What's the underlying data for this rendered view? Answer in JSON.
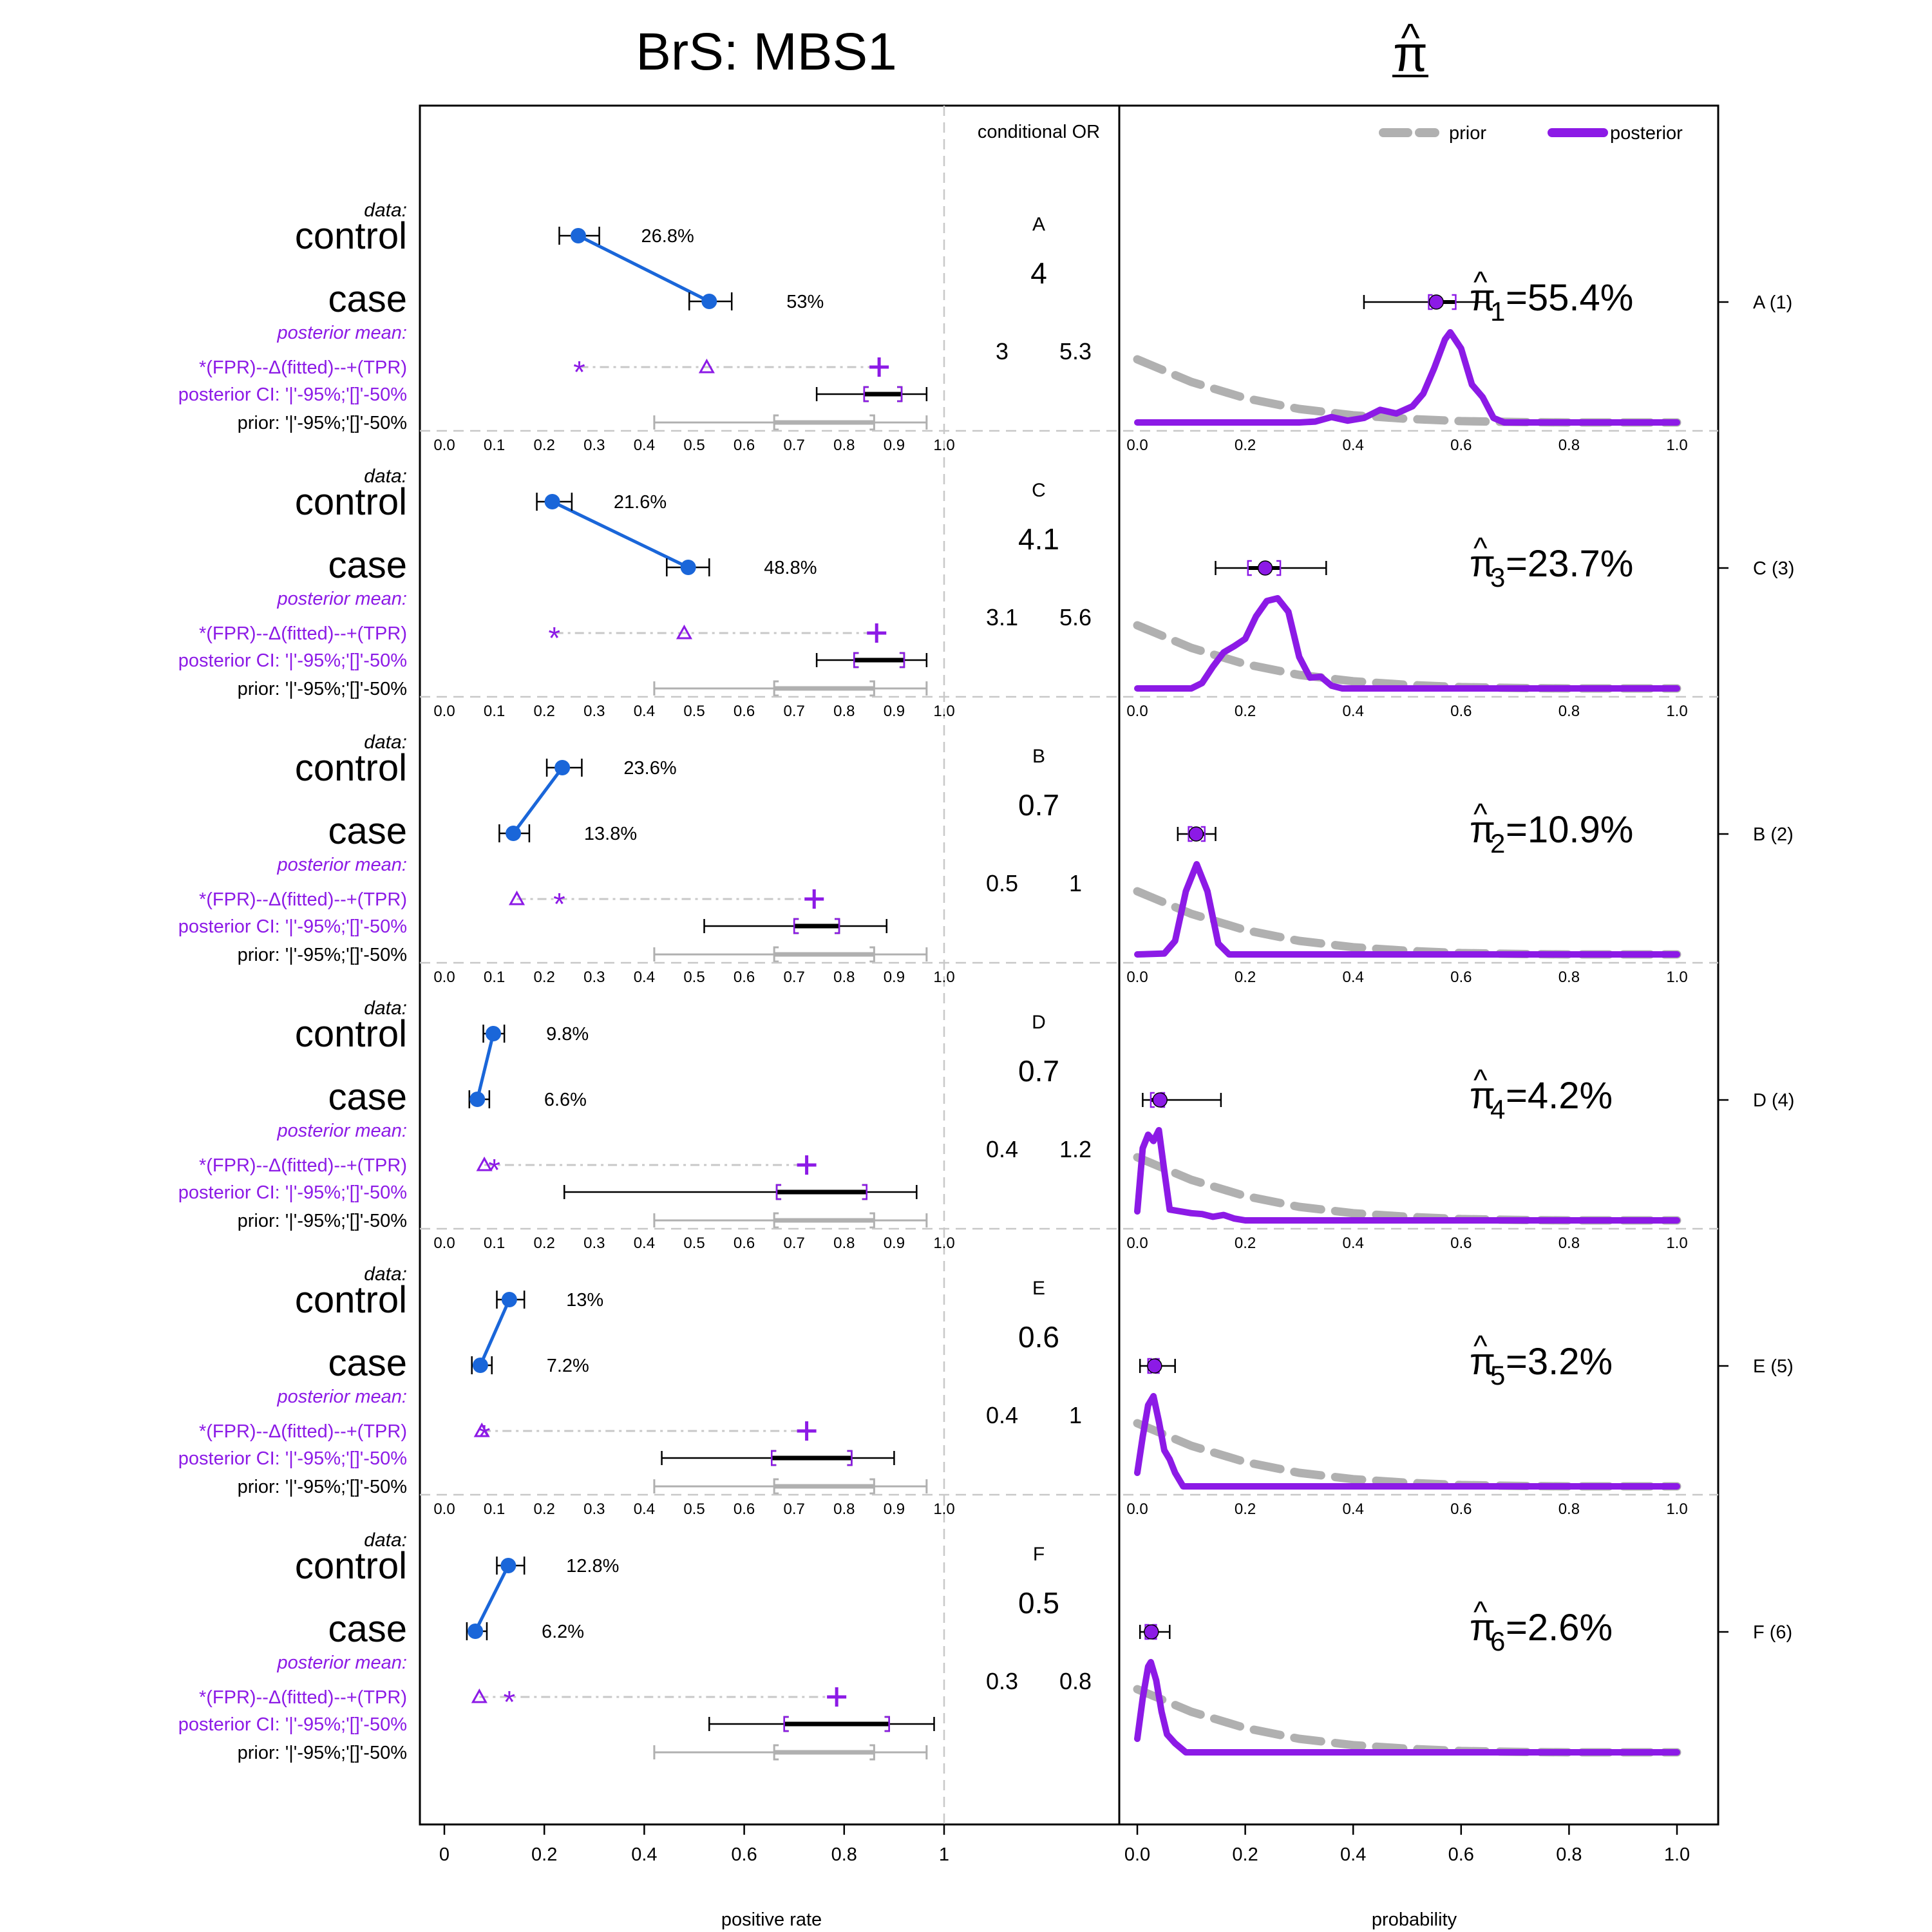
{
  "left_title": "BrS: MBS1",
  "right_title": "π",
  "hat": "^",
  "conditional_or_header": "conditional OR",
  "left_xlabel": "positive rate",
  "right_xlabel": "probability",
  "left_ticks": [
    "0",
    "0.2",
    "0.4",
    "0.6",
    "0.8",
    "1"
  ],
  "inner_ticks": [
    "0.0",
    "0.1",
    "0.2",
    "0.3",
    "0.4",
    "0.5",
    "0.6",
    "0.7",
    "0.8",
    "0.9",
    "1.0"
  ],
  "right_ticks": [
    "0.0",
    "0.2",
    "0.4",
    "0.6",
    "0.8",
    "1.0"
  ],
  "legend": {
    "prior": "prior",
    "posterior": "posterior"
  },
  "labels": {
    "data": "data:",
    "control": "control",
    "case": "case",
    "posterior_mean": "posterior mean:",
    "fpr_line": "*(FPR)--Δ(fitted)--+(TPR)",
    "posterior_ci": "posterior CI: '|'-95%;'[]'-50%",
    "prior_ci": "prior: '|'-95%;'[]'-50%"
  },
  "colors": {
    "data_blue": "#1a66d9",
    "purple": "#8c1ae6",
    "prior_gray": "#b0b0b0",
    "dash_gray": "#c8c8c8"
  },
  "chart_data": {
    "type": "forest-and-density",
    "prior_ci": {
      "lo95": 0.42,
      "lo50": 0.66,
      "hi50": 0.86,
      "hi95": 0.965
    },
    "panels": [
      {
        "name": "A",
        "index_label": "A (1)",
        "pi_sub": "1",
        "pi_text": "=55.4%",
        "pi_value": 0.554,
        "pi_ci": {
          "lo95": 0.42,
          "lo50": 0.54,
          "hi50": 0.59,
          "hi95": 0.65
        },
        "control_rate": 0.268,
        "control_ci": [
          0.23,
          0.31
        ],
        "control_label": "26.8%",
        "case_rate": 0.53,
        "case_ci": [
          0.49,
          0.575
        ],
        "case_label": "53%",
        "or": "4",
        "or_lo": "3",
        "or_hi": "5.3",
        "fpr": 0.27,
        "fitted": 0.525,
        "tpr": 0.87,
        "post_ci": {
          "lo95": 0.745,
          "lo50": 0.84,
          "hi50": 0.915,
          "hi95": 0.965
        },
        "prior_curve": [
          [
            0,
            0.7
          ],
          [
            0.1,
            0.45
          ],
          [
            0.2,
            0.27
          ],
          [
            0.3,
            0.15
          ],
          [
            0.4,
            0.08
          ],
          [
            0.5,
            0.04
          ],
          [
            0.6,
            0.015
          ],
          [
            0.7,
            0.005
          ],
          [
            0.8,
            0
          ],
          [
            1,
            0
          ]
        ],
        "posterior_curve": [
          [
            0,
            0
          ],
          [
            0.3,
            0
          ],
          [
            0.33,
            0.01
          ],
          [
            0.36,
            0.06
          ],
          [
            0.39,
            0.02
          ],
          [
            0.42,
            0.05
          ],
          [
            0.45,
            0.14
          ],
          [
            0.48,
            0.1
          ],
          [
            0.51,
            0.18
          ],
          [
            0.53,
            0.32
          ],
          [
            0.55,
            0.6
          ],
          [
            0.57,
            0.92
          ],
          [
            0.58,
            1.0
          ],
          [
            0.6,
            0.82
          ],
          [
            0.62,
            0.42
          ],
          [
            0.64,
            0.28
          ],
          [
            0.66,
            0.05
          ],
          [
            0.68,
            0
          ],
          [
            1,
            0
          ]
        ]
      },
      {
        "name": "C",
        "index_label": "C (3)",
        "pi_sub": "3",
        "pi_text": "=23.7%",
        "pi_value": 0.237,
        "pi_ci": {
          "lo95": 0.145,
          "lo50": 0.205,
          "hi50": 0.265,
          "hi95": 0.35
        },
        "control_rate": 0.216,
        "control_ci": [
          0.185,
          0.255
        ],
        "control_label": "21.6%",
        "case_rate": 0.488,
        "case_ci": [
          0.445,
          0.53
        ],
        "case_label": "48.8%",
        "or": "4.1",
        "or_lo": "3.1",
        "or_hi": "5.6",
        "fpr": 0.22,
        "fitted": 0.48,
        "tpr": 0.865,
        "post_ci": {
          "lo95": 0.745,
          "lo50": 0.82,
          "hi50": 0.92,
          "hi95": 0.965
        },
        "prior_curve": [
          [
            0,
            0.7
          ],
          [
            0.1,
            0.45
          ],
          [
            0.2,
            0.27
          ],
          [
            0.3,
            0.15
          ],
          [
            0.4,
            0.08
          ],
          [
            0.5,
            0.04
          ],
          [
            0.6,
            0.015
          ],
          [
            0.7,
            0.005
          ],
          [
            0.8,
            0
          ],
          [
            1,
            0
          ]
        ],
        "posterior_curve": [
          [
            0,
            0
          ],
          [
            0.1,
            0
          ],
          [
            0.12,
            0.06
          ],
          [
            0.14,
            0.24
          ],
          [
            0.16,
            0.4
          ],
          [
            0.18,
            0.47
          ],
          [
            0.2,
            0.55
          ],
          [
            0.22,
            0.8
          ],
          [
            0.24,
            0.97
          ],
          [
            0.26,
            1.0
          ],
          [
            0.28,
            0.85
          ],
          [
            0.3,
            0.35
          ],
          [
            0.32,
            0.12
          ],
          [
            0.34,
            0.13
          ],
          [
            0.36,
            0.03
          ],
          [
            0.38,
            0
          ],
          [
            1,
            0
          ]
        ]
      },
      {
        "name": "B",
        "index_label": "B (2)",
        "pi_sub": "2",
        "pi_text": "=10.9%",
        "pi_value": 0.109,
        "pi_ci": {
          "lo95": 0.075,
          "lo50": 0.095,
          "hi50": 0.125,
          "hi95": 0.145
        },
        "control_rate": 0.236,
        "control_ci": [
          0.205,
          0.275
        ],
        "control_label": "23.6%",
        "case_rate": 0.138,
        "case_ci": [
          0.11,
          0.17
        ],
        "case_label": "13.8%",
        "or": "0.7",
        "or_lo": "0.5",
        "or_hi": "1",
        "fpr": 0.23,
        "fitted": 0.145,
        "tpr": 0.74,
        "post_ci": {
          "lo95": 0.52,
          "lo50": 0.7,
          "hi50": 0.79,
          "hi95": 0.885
        },
        "prior_curve": [
          [
            0,
            0.7
          ],
          [
            0.1,
            0.45
          ],
          [
            0.2,
            0.27
          ],
          [
            0.3,
            0.15
          ],
          [
            0.4,
            0.08
          ],
          [
            0.5,
            0.04
          ],
          [
            0.6,
            0.015
          ],
          [
            0.7,
            0.005
          ],
          [
            0.8,
            0
          ],
          [
            1,
            0
          ]
        ],
        "posterior_curve": [
          [
            0,
            0
          ],
          [
            0.05,
            0.01
          ],
          [
            0.07,
            0.15
          ],
          [
            0.09,
            0.7
          ],
          [
            0.11,
            1.0
          ],
          [
            0.13,
            0.7
          ],
          [
            0.15,
            0.12
          ],
          [
            0.17,
            0
          ],
          [
            1,
            0
          ]
        ]
      },
      {
        "name": "D",
        "index_label": "D (4)",
        "pi_sub": "4",
        "pi_text": "=4.2%",
        "pi_value": 0.042,
        "pi_ci": {
          "lo95": 0.01,
          "lo50": 0.025,
          "hi50": 0.05,
          "hi95": 0.155
        },
        "control_rate": 0.098,
        "control_ci": [
          0.078,
          0.12
        ],
        "control_label": "9.8%",
        "case_rate": 0.066,
        "case_ci": [
          0.05,
          0.09
        ],
        "case_label": "6.6%",
        "or": "0.7",
        "or_lo": "0.4",
        "or_hi": "1.2",
        "fpr": 0.1,
        "fitted": 0.08,
        "tpr": 0.725,
        "post_ci": {
          "lo95": 0.24,
          "lo50": 0.665,
          "hi50": 0.845,
          "hi95": 0.945
        },
        "prior_curve": [
          [
            0,
            0.7
          ],
          [
            0.1,
            0.45
          ],
          [
            0.2,
            0.27
          ],
          [
            0.3,
            0.15
          ],
          [
            0.4,
            0.08
          ],
          [
            0.5,
            0.04
          ],
          [
            0.6,
            0.015
          ],
          [
            0.7,
            0.005
          ],
          [
            0.8,
            0
          ],
          [
            1,
            0
          ]
        ],
        "posterior_curve": [
          [
            0,
            0.1
          ],
          [
            0.01,
            0.8
          ],
          [
            0.02,
            0.95
          ],
          [
            0.03,
            0.88
          ],
          [
            0.04,
            1.0
          ],
          [
            0.05,
            0.55
          ],
          [
            0.06,
            0.12
          ],
          [
            0.08,
            0.1
          ],
          [
            0.1,
            0.08
          ],
          [
            0.12,
            0.07
          ],
          [
            0.14,
            0.04
          ],
          [
            0.16,
            0.06
          ],
          [
            0.18,
            0.02
          ],
          [
            0.2,
            0
          ],
          [
            1,
            0
          ]
        ]
      },
      {
        "name": "E",
        "index_label": "E (5)",
        "pi_sub": "5",
        "pi_text": "=3.2%",
        "pi_value": 0.032,
        "pi_ci": {
          "lo95": 0.005,
          "lo50": 0.02,
          "hi50": 0.04,
          "hi95": 0.07
        },
        "control_rate": 0.13,
        "control_ci": [
          0.105,
          0.16
        ],
        "control_label": "13%",
        "case_rate": 0.072,
        "case_ci": [
          0.055,
          0.095
        ],
        "case_label": "7.2%",
        "or": "0.6",
        "or_lo": "0.4",
        "or_hi": "1",
        "fpr": 0.08,
        "fitted": 0.075,
        "tpr": 0.725,
        "post_ci": {
          "lo95": 0.435,
          "lo50": 0.655,
          "hi50": 0.815,
          "hi95": 0.9
        },
        "prior_curve": [
          [
            0,
            0.7
          ],
          [
            0.1,
            0.45
          ],
          [
            0.2,
            0.27
          ],
          [
            0.3,
            0.15
          ],
          [
            0.4,
            0.08
          ],
          [
            0.5,
            0.04
          ],
          [
            0.6,
            0.015
          ],
          [
            0.7,
            0.005
          ],
          [
            0.8,
            0
          ],
          [
            1,
            0
          ]
        ],
        "posterior_curve": [
          [
            0,
            0.15
          ],
          [
            0.01,
            0.55
          ],
          [
            0.02,
            0.9
          ],
          [
            0.03,
            1.0
          ],
          [
            0.04,
            0.72
          ],
          [
            0.05,
            0.4
          ],
          [
            0.06,
            0.3
          ],
          [
            0.07,
            0.15
          ],
          [
            0.085,
            0
          ],
          [
            1,
            0
          ]
        ]
      },
      {
        "name": "F",
        "index_label": "F (6)",
        "pi_sub": "6",
        "pi_text": "=2.6%",
        "pi_value": 0.026,
        "pi_ci": {
          "lo95": 0.005,
          "lo50": 0.015,
          "hi50": 0.035,
          "hi95": 0.06
        },
        "control_rate": 0.128,
        "control_ci": [
          0.105,
          0.16
        ],
        "control_label": "12.8%",
        "case_rate": 0.062,
        "case_ci": [
          0.045,
          0.085
        ],
        "case_label": "6.2%",
        "or": "0.5",
        "or_lo": "0.3",
        "or_hi": "0.8",
        "fpr": 0.13,
        "fitted": 0.07,
        "tpr": 0.785,
        "post_ci": {
          "lo95": 0.53,
          "lo50": 0.68,
          "hi50": 0.89,
          "hi95": 0.98
        },
        "prior_curve": [
          [
            0,
            0.7
          ],
          [
            0.1,
            0.45
          ],
          [
            0.2,
            0.27
          ],
          [
            0.3,
            0.15
          ],
          [
            0.4,
            0.08
          ],
          [
            0.5,
            0.04
          ],
          [
            0.6,
            0.015
          ],
          [
            0.7,
            0.005
          ],
          [
            0.8,
            0
          ],
          [
            1,
            0
          ]
        ],
        "posterior_curve": [
          [
            0,
            0.15
          ],
          [
            0.01,
            0.6
          ],
          [
            0.02,
            0.95
          ],
          [
            0.025,
            1.0
          ],
          [
            0.035,
            0.8
          ],
          [
            0.045,
            0.45
          ],
          [
            0.055,
            0.2
          ],
          [
            0.07,
            0.1
          ],
          [
            0.09,
            0
          ],
          [
            1,
            0
          ]
        ]
      }
    ]
  }
}
